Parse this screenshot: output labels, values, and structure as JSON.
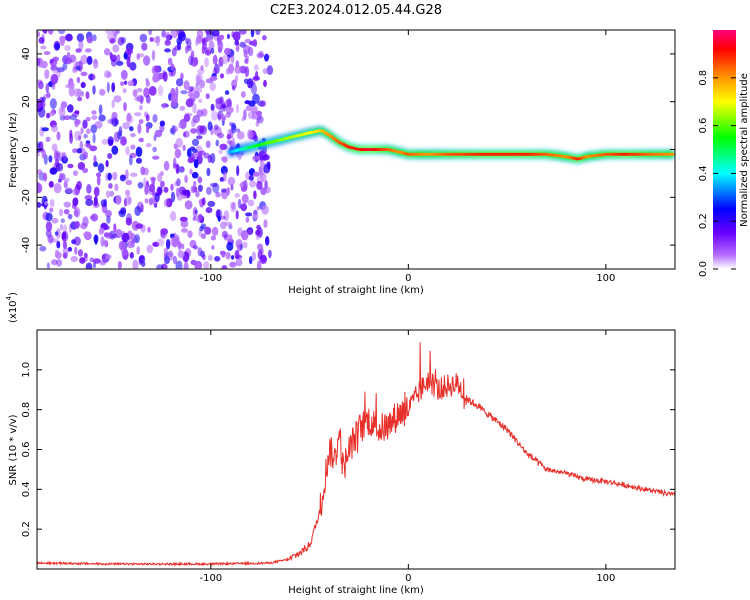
{
  "title": "C2E3.2024.012.05.44.G28",
  "chart_data": [
    {
      "type": "heatmap",
      "xlabel": "Height of straight line (km)",
      "ylabel": "Frequency (Hz)",
      "xlim": [
        -188,
        135
      ],
      "ylim": [
        -50,
        50
      ],
      "xticks": [
        -100,
        0,
        100
      ],
      "yticks": [
        -40,
        -20,
        0,
        20,
        40
      ],
      "colorbar": {
        "label": "Normalized spectral amplitude",
        "ticks": [
          "0.0",
          "0.2",
          "0.4",
          "0.6",
          "0.8"
        ],
        "tick_values": [
          0.0,
          0.2,
          0.4,
          0.6,
          0.8
        ],
        "range": [
          0,
          1
        ],
        "colors": [
          "#ffffff",
          "#7f00ff",
          "#0000ff",
          "#00ffff",
          "#00ff00",
          "#ffff00",
          "#ff8000",
          "#ff0000",
          "#ff0080"
        ]
      },
      "noise_region_x": [
        -188,
        -70
      ],
      "ridge": {
        "x": [
          -90,
          -80,
          -70,
          -60,
          -50,
          -44,
          -40,
          -35,
          -30,
          -25,
          -20,
          -15,
          -10,
          -5,
          0,
          10,
          20,
          40,
          60,
          70,
          80,
          86,
          90,
          100,
          110,
          120,
          135
        ],
        "y": [
          -1,
          1,
          3,
          5,
          7,
          8,
          6,
          3,
          1,
          0,
          0,
          0,
          0,
          -1,
          -2,
          -2,
          -2,
          -2,
          -2,
          -2,
          -3,
          -4,
          -3,
          -2,
          -2,
          -2,
          -2
        ],
        "amplitude": [
          0.35,
          0.5,
          0.6,
          0.65,
          0.7,
          0.75,
          0.8,
          0.85,
          0.9,
          0.9,
          0.95,
          0.9,
          0.85,
          0.8,
          0.85,
          0.8,
          0.85,
          0.9,
          0.9,
          0.85,
          0.8,
          0.9,
          0.8,
          0.85,
          0.9,
          0.85,
          0.8
        ]
      }
    },
    {
      "type": "line",
      "xlabel": "Height of straight line (km)",
      "ylabel": "SNR (10 * v/v)",
      "scale_label": "(x10",
      "scale_exp": "4",
      "scale_close": ")",
      "xlim": [
        -188,
        135
      ],
      "ylim": [
        0,
        1.2
      ],
      "xticks": [
        -100,
        0,
        100
      ],
      "yticks": [
        0.2,
        0.4,
        0.6,
        0.8,
        1.0
      ],
      "ytick_labels": [
        "0.2",
        "0.4",
        "0.6",
        "0.8",
        "1.0"
      ],
      "series": [
        {
          "color": "#e8302b",
          "x": [
            -188,
            -150,
            -100,
            -70,
            -60,
            -55,
            -50,
            -45,
            -40,
            -37,
            -35,
            -33,
            -30,
            -25,
            -20,
            -15,
            -10,
            -5,
            0,
            5,
            10,
            15,
            20,
            25,
            30,
            35,
            40,
            50,
            60,
            70,
            80,
            90,
            100,
            110,
            120,
            135
          ],
          "y": [
            0.03,
            0.025,
            0.025,
            0.03,
            0.05,
            0.08,
            0.12,
            0.28,
            0.6,
            0.55,
            0.7,
            0.5,
            0.6,
            0.7,
            0.75,
            0.7,
            0.72,
            0.78,
            0.8,
            0.88,
            0.95,
            0.9,
            0.92,
            0.93,
            0.85,
            0.82,
            0.78,
            0.7,
            0.58,
            0.5,
            0.48,
            0.45,
            0.44,
            0.42,
            0.4,
            0.37
          ]
        }
      ]
    }
  ]
}
